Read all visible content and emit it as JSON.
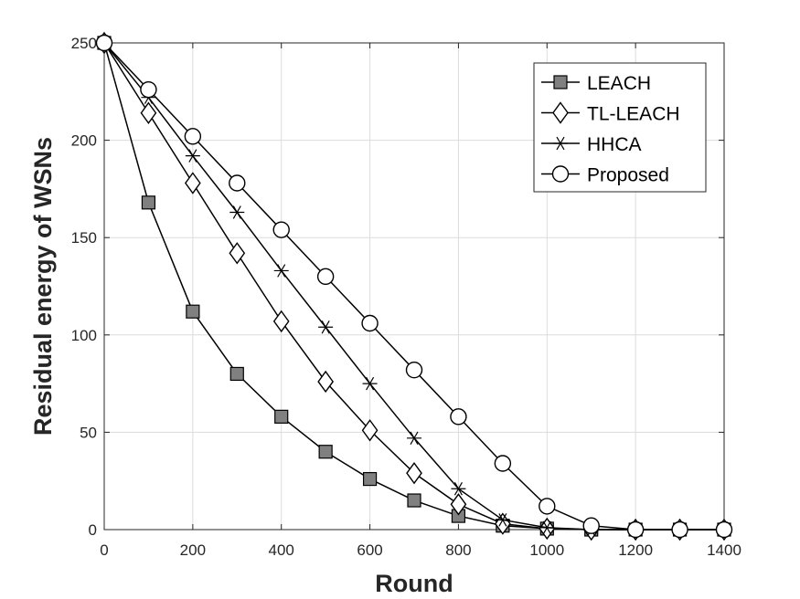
{
  "chart_data": {
    "type": "line",
    "title": "",
    "xlabel": "Round",
    "ylabel": "Residual energy of WSNs",
    "xlim": [
      0,
      1400
    ],
    "ylim": [
      0,
      250
    ],
    "xticks": [
      0,
      200,
      400,
      600,
      800,
      1000,
      1200,
      1400
    ],
    "yticks": [
      0,
      50,
      100,
      150,
      200,
      250
    ],
    "grid": true,
    "legend_position": "top-right",
    "x": [
      0,
      100,
      200,
      300,
      400,
      500,
      600,
      700,
      800,
      900,
      1000,
      1100,
      1200,
      1300,
      1400
    ],
    "series": [
      {
        "name": "LEACH",
        "marker": "square",
        "values": [
          250,
          168,
          112,
          80,
          58,
          40,
          26,
          15,
          7,
          2,
          0.5,
          0,
          0,
          0,
          0
        ]
      },
      {
        "name": "TL-LEACH",
        "marker": "diamond",
        "values": [
          250,
          214,
          178,
          142,
          107,
          76,
          51,
          29,
          13,
          3,
          0.5,
          0,
          0,
          0,
          0
        ]
      },
      {
        "name": "HHCA",
        "marker": "asterisk",
        "values": [
          250,
          222,
          192,
          163,
          133,
          104,
          75,
          47,
          21,
          5,
          1,
          0,
          0,
          0,
          0
        ]
      },
      {
        "name": "Proposed",
        "marker": "circle",
        "values": [
          250,
          226,
          202,
          178,
          154,
          130,
          106,
          82,
          58,
          34,
          12,
          2,
          0,
          0,
          0
        ]
      }
    ]
  }
}
